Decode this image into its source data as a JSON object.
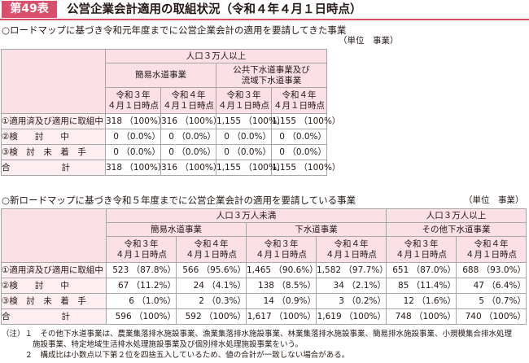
{
  "title": {
    "label": "第49表",
    "text": "公営企業会計適用の取組状況（令和４年４月１日時点）"
  },
  "section1": {
    "heading": "○ロードマップに基づき令和元年度までに公営企業会計の適用を要請してきた事業",
    "unit": "（単位　事業）",
    "population": "人口３万人以上",
    "categories": [
      "簡易水道事業",
      "公共下水道事業及び\n流域下水道事業"
    ],
    "dates": [
      "令和３年\n４月１日時点",
      "令和４年\n４月１日時点",
      "令和３年\n４月１日時点",
      "令和４年\n４月１日時点"
    ],
    "rows": [
      {
        "label": "①適用済及び適用に取組中",
        "cells": [
          "318 （100%）",
          "316 （100%）",
          "1,155 （100%）",
          "1,155 （100%）"
        ]
      },
      {
        "label": "②検　　討　　中",
        "cells": [
          "0 （0.0%）",
          "0 （0.0%）",
          "0 （0.0%）",
          "0 （0.0%）"
        ]
      },
      {
        "label": "③検　討　未　着　手",
        "cells": [
          "0 （0.0%）",
          "0 （0.0%）",
          "0 （0.0%）",
          "0 （0.0%）"
        ]
      },
      {
        "label": "合　　　　　　計",
        "cells": [
          "318 （100%）",
          "316 （100%）",
          "1,155 （100%）",
          "1,155 （100%）"
        ]
      }
    ]
  },
  "section2": {
    "heading": "○新ロードマップに基づき令和５年度までに公営企業会計の適用を要請している事業",
    "unit": "（単位　事業）",
    "populations": [
      "人口３万人未満",
      "人口３万人以上"
    ],
    "categories": [
      "簡易水道事業",
      "下水道事業",
      "その他下水道事業"
    ],
    "dates": [
      "令和３年\n４月１日時点",
      "令和４年\n４月１日時点",
      "令和３年\n４月１日時点",
      "令和４年\n４月１日時点",
      "令和３年\n４月１日時点",
      "令和４年\n４月１日時点"
    ],
    "rows": [
      {
        "label": "①適用済及び適用に取組中",
        "cells": [
          "523 （87.8%）",
          "566 （95.6%）",
          "1,465 （90.6%）",
          "1,582 （97.7%）",
          "651 （87.0%）",
          "688 （93.0%）"
        ]
      },
      {
        "label": "②検　　討　　中",
        "cells": [
          "67 （11.2%）",
          "24 （4.1%）",
          "138 （8.5%）",
          "34 （2.1%）",
          "85 （11.4%）",
          "47 （6.4%）"
        ]
      },
      {
        "label": "③検　討　未　着　手",
        "cells": [
          "6 （1.0%）",
          "2 （0.3%）",
          "14 （0.9%）",
          "3 （0.2%）",
          "12 （1.6%）",
          "5 （0.7%）"
        ]
      },
      {
        "label": "合　　　　　　計",
        "cells": [
          "596 （100%）",
          "592 （100%）",
          "1,617 （100%）",
          "1,619 （100%）",
          "748 （100%）",
          "740 （100%）"
        ]
      }
    ]
  },
  "notes": [
    "（注）１　その他下水道事業は、農業集落排水施設事業、漁業集落排水施設事業、林業集落排水施設事業、簡易排水施設事業、小規模集合排水処理",
    "　　　　施設事業、特定地域生活排水処理施設事業及び個別排水処理施設事業をいう。",
    "　　　２　構成比は小数点以下第２位を四捨五入しているため、値の合計が一致しない場合がある。"
  ]
}
